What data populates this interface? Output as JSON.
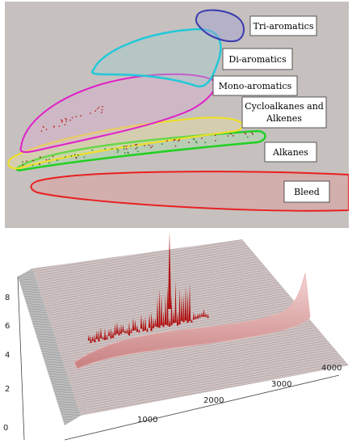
{
  "top_panel": {
    "background": "#c6c1bf",
    "regions": [
      {
        "label": "Tri-aromatics",
        "color": "#3a3ab0"
      },
      {
        "label": "Di-aromatics",
        "color": "#22c8d8"
      },
      {
        "label": "Mono-aromatics",
        "color": "#e020c8"
      },
      {
        "label_line1": "Cycloalkanes and",
        "label_line2": "Alkenes",
        "color": "#f0e020"
      },
      {
        "label": "Alkanes",
        "color": "#22d022"
      },
      {
        "label": "Bleed",
        "color": "#e82020"
      }
    ]
  },
  "bottom_panel": {
    "z_ticks": [
      "0",
      "2",
      "4",
      "6",
      "8"
    ],
    "x_ticks": [
      "1000",
      "2000",
      "3000",
      "4000"
    ],
    "surface_color": "#c89090",
    "peak_color": "#b01010"
  }
}
